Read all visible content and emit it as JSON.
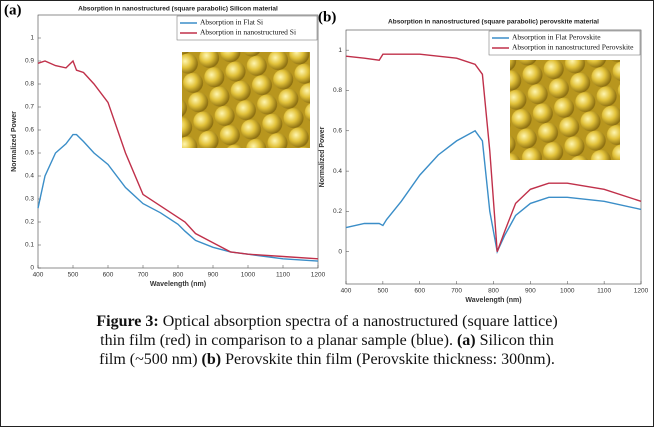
{
  "chart_data": [
    {
      "type": "line",
      "panel_label": "(a)",
      "title": "Absorption in nanostructured (square parabolic) Silicon material",
      "x_label": "Wavelength (nm)",
      "y_label": "Normalized Power",
      "x": [
        400,
        420,
        450,
        480,
        500,
        510,
        530,
        560,
        600,
        650,
        700,
        750,
        800,
        820,
        850,
        900,
        950,
        1000,
        1100,
        1200
      ],
      "series": [
        {
          "name": "Absorption in Flat Si",
          "color": "#3b8ec8",
          "values": [
            0.26,
            0.4,
            0.5,
            0.54,
            0.58,
            0.58,
            0.55,
            0.5,
            0.45,
            0.35,
            0.28,
            0.24,
            0.19,
            0.16,
            0.12,
            0.09,
            0.07,
            0.06,
            0.04,
            0.03
          ]
        },
        {
          "name": "Absorption in nanostructured Si",
          "color": "#c0304a",
          "values": [
            0.89,
            0.9,
            0.88,
            0.87,
            0.9,
            0.86,
            0.85,
            0.8,
            0.72,
            0.5,
            0.32,
            0.27,
            0.22,
            0.2,
            0.15,
            0.11,
            0.07,
            0.06,
            0.05,
            0.04
          ]
        }
      ],
      "xlim": [
        400,
        1200
      ],
      "xticks": [
        400,
        500,
        600,
        700,
        800,
        900,
        1000,
        1100,
        1200
      ],
      "ylim": [
        0,
        1.1
      ],
      "yticks": [
        0,
        0.1,
        0.2,
        0.3,
        0.4,
        0.5,
        0.6,
        0.7,
        0.8,
        0.9,
        1
      ],
      "legend": "upper right"
    },
    {
      "type": "line",
      "panel_label": "(b)",
      "title": "Absorption in nanostructured (square parabolic) perovskite material",
      "x_label": "Wavelength (nm)",
      "y_label": "Normalized Power",
      "x": [
        400,
        450,
        490,
        500,
        510,
        550,
        600,
        650,
        700,
        750,
        770,
        790,
        810,
        830,
        860,
        900,
        950,
        1000,
        1100,
        1200
      ],
      "series": [
        {
          "name": "Absorption in Flat Perovskite",
          "color": "#3b8ec8",
          "values": [
            0.12,
            0.14,
            0.14,
            0.13,
            0.16,
            0.25,
            0.38,
            0.48,
            0.55,
            0.6,
            0.55,
            0.2,
            0.0,
            0.08,
            0.18,
            0.24,
            0.27,
            0.27,
            0.25,
            0.21
          ]
        },
        {
          "name": "Absorption in nanostructured Perovskite",
          "color": "#c0304a",
          "values": [
            0.97,
            0.96,
            0.95,
            0.98,
            0.98,
            0.98,
            0.98,
            0.97,
            0.96,
            0.93,
            0.88,
            0.5,
            0.0,
            0.1,
            0.24,
            0.31,
            0.34,
            0.34,
            0.31,
            0.25
          ]
        }
      ],
      "xlim": [
        400,
        1200
      ],
      "xticks": [
        400,
        500,
        600,
        700,
        800,
        900,
        1000,
        1100,
        1200
      ],
      "ylim": [
        -0.16,
        1.1
      ],
      "yticks": [
        0,
        0.2,
        0.4,
        0.6,
        0.8,
        1
      ],
      "legend": "upper right"
    }
  ],
  "caption": {
    "label": "Figure 3:",
    "text": "Optical absorption spectra of a nanostructured (square lattice) thin film (red) in comparison to a planar sample (blue).",
    "part_a": "(a)",
    "text_a": "Silicon thin film (~500 nm)",
    "part_b": "(b)",
    "text_b": "Perovskite thin film (Perovskite thickness: 300nm)."
  }
}
